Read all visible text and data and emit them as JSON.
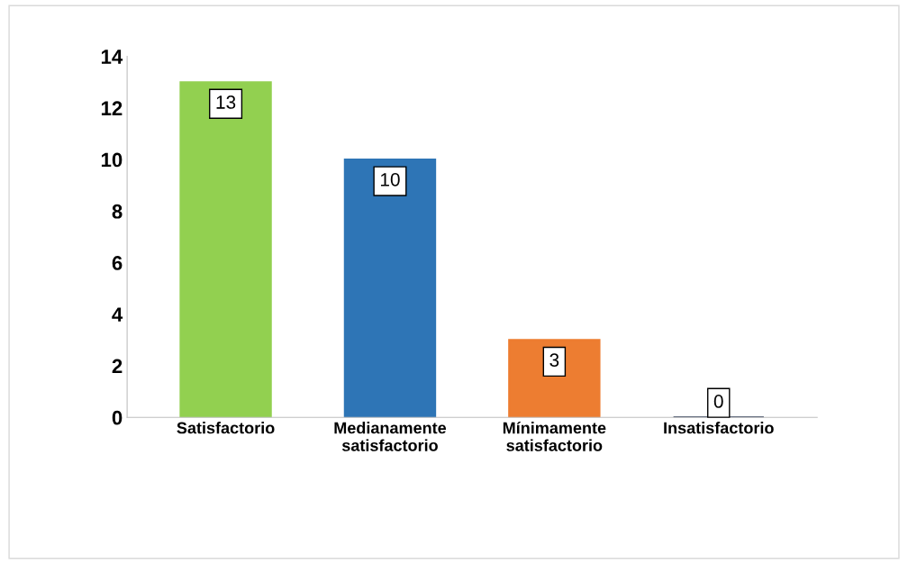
{
  "chart_data": {
    "type": "bar",
    "categories": [
      "Satisfactorio",
      "Medianamente satisfactorio",
      "Mínimamente satisfactorio",
      "Insatisfactorio"
    ],
    "values": [
      13,
      10,
      3,
      0
    ],
    "colors": [
      "#92d050",
      "#2e75b6",
      "#ed7d31",
      "#0f1f3d"
    ],
    "ylim": [
      0,
      14
    ],
    "yticks": [
      0,
      2,
      4,
      6,
      8,
      10,
      12,
      14
    ],
    "grid": false,
    "data_labels": true
  }
}
